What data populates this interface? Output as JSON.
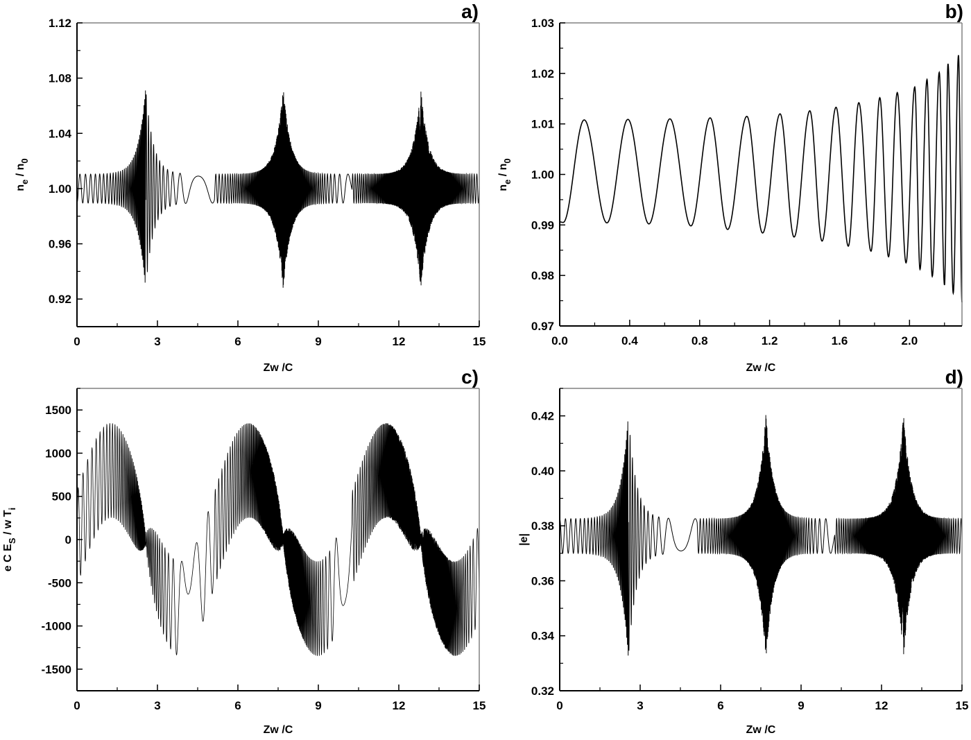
{
  "figure": {
    "background": "#ffffff",
    "line_color": "#000000",
    "frame_color": "#000000",
    "frame_top_right_color": "#808080"
  },
  "chart_data": [
    {
      "id": "a",
      "panel_label": "a)",
      "type": "line",
      "title": "",
      "xlabel": "Zw /C",
      "ylabel": "n_e / n_0",
      "ylabel_main": "n",
      "ylabel_parts": [
        "n",
        "e",
        " / n",
        "0"
      ],
      "xlim": [
        0,
        15
      ],
      "ylim": [
        0.9,
        1.12
      ],
      "xticks": [
        0,
        3,
        6,
        9,
        12,
        15
      ],
      "xtick_labels": [
        "0",
        "3",
        "6",
        "9",
        "12",
        "15"
      ],
      "yticks": [
        0.92,
        0.96,
        1.0,
        1.04,
        1.08,
        1.12
      ],
      "ytick_labels": [
        "0.92",
        "0.96",
        "1.00",
        "1.04",
        "1.08",
        "1.12"
      ],
      "grid": false,
      "description": "Oscillation around 1.00 with baseline amplitude ~0.01; sharp bursts (dense high-frequency oscillation) peaking at x≈2.56, 7.69, 12.82",
      "baseline": 1.0,
      "baseline_amplitude": 0.0105,
      "burst_centers": [
        2.56,
        7.69,
        12.82
      ],
      "burst_peak_max": 1.073,
      "burst_peak_min": 0.929,
      "period": 5.13
    },
    {
      "id": "b",
      "panel_label": "b)",
      "type": "line",
      "title": "",
      "xlabel": "Zw /C",
      "ylabel": "n_e / n_0",
      "ylabel_parts": [
        "n",
        "e",
        " / n",
        "0"
      ],
      "xlim": [
        0,
        2.3
      ],
      "ylim": [
        0.97,
        1.03
      ],
      "xticks": [
        0.0,
        0.4,
        0.8,
        1.2,
        1.6,
        2.0
      ],
      "xtick_labels": [
        "0.0",
        "0.4",
        "0.8",
        "1.2",
        "1.6",
        "2.0"
      ],
      "yticks": [
        0.97,
        0.98,
        0.99,
        1.0,
        1.01,
        1.02,
        1.03
      ],
      "ytick_labels": [
        "0.97",
        "0.98",
        "0.99",
        "1.00",
        "1.01",
        "1.02",
        "1.03"
      ],
      "grid": false,
      "description": "Zoom of panel a from 0 to 2.3: oscillation with growing amplitude and increasing frequency (chirp)",
      "peaks": [
        {
          "x": 0.14,
          "y": 1.0108
        },
        {
          "x": 0.39,
          "y": 1.0109
        },
        {
          "x": 0.63,
          "y": 1.011
        },
        {
          "x": 0.86,
          "y": 1.0112
        },
        {
          "x": 1.07,
          "y": 1.0115
        },
        {
          "x": 1.26,
          "y": 1.012
        },
        {
          "x": 1.43,
          "y": 1.0126
        },
        {
          "x": 1.58,
          "y": 1.0133
        },
        {
          "x": 1.71,
          "y": 1.0142
        },
        {
          "x": 1.83,
          "y": 1.0152
        },
        {
          "x": 1.93,
          "y": 1.0162
        },
        {
          "x": 2.03,
          "y": 1.0173
        },
        {
          "x": 2.1,
          "y": 1.0188
        },
        {
          "x": 2.17,
          "y": 1.0202
        },
        {
          "x": 2.22,
          "y": 1.0219
        },
        {
          "x": 2.28,
          "y": 1.0236
        }
      ],
      "troughs": [
        {
          "x": 0.02,
          "y": 0.9905
        },
        {
          "x": 0.27,
          "y": 0.9904
        },
        {
          "x": 0.51,
          "y": 0.9902
        },
        {
          "x": 0.75,
          "y": 0.9898
        },
        {
          "x": 0.96,
          "y": 0.9891
        },
        {
          "x": 1.16,
          "y": 0.9884
        },
        {
          "x": 1.34,
          "y": 0.9876
        },
        {
          "x": 1.5,
          "y": 0.9868
        },
        {
          "x": 1.65,
          "y": 0.9858
        },
        {
          "x": 1.78,
          "y": 0.9848
        },
        {
          "x": 1.88,
          "y": 0.9837
        },
        {
          "x": 1.98,
          "y": 0.9825
        },
        {
          "x": 2.06,
          "y": 0.9812
        },
        {
          "x": 2.13,
          "y": 0.9798
        },
        {
          "x": 2.2,
          "y": 0.9781
        },
        {
          "x": 2.25,
          "y": 0.9765
        },
        {
          "x": 2.3,
          "y": 0.9747
        }
      ]
    },
    {
      "id": "c",
      "panel_label": "c)",
      "type": "line",
      "title": "",
      "xlabel": "Zw /C",
      "ylabel": "e C E_S / w T_i",
      "ylabel_parts": [
        "e C E",
        "S",
        " / w T",
        "i"
      ],
      "xlim": [
        0,
        15
      ],
      "ylim": [
        -1750,
        1750
      ],
      "xticks": [
        0,
        3,
        6,
        9,
        12,
        15
      ],
      "xtick_labels": [
        "0",
        "3",
        "6",
        "9",
        "12",
        "15"
      ],
      "yticks": [
        -1500,
        -1000,
        -500,
        0,
        500,
        1000,
        1500
      ],
      "ytick_labels": [
        "-1500",
        "-1000",
        "-500",
        "0",
        "500",
        "1000",
        "1500"
      ],
      "grid": false,
      "description": "Slow sinusoidal envelope (period ~5.13) of amplitude ~800 with superposed fast oscillation of amplitude ~550; max ≈ 1350, min ≈ -1350; dense zero-crossings near x≈2.56, 7.69, 12.82",
      "slow_amplitude": 800,
      "fast_amplitude": 550,
      "max": 1350,
      "min": -1350,
      "period": 5.13,
      "dense_regions": [
        2.56,
        7.69,
        12.82
      ]
    },
    {
      "id": "d",
      "panel_label": "d)",
      "type": "line",
      "title": "",
      "xlabel": "Zw /C",
      "ylabel": "|e|",
      "xlim": [
        0,
        15
      ],
      "ylim": [
        0.32,
        0.43
      ],
      "xticks": [
        0,
        3,
        6,
        9,
        12,
        15
      ],
      "xtick_labels": [
        "0",
        "3",
        "6",
        "9",
        "12",
        "15"
      ],
      "yticks": [
        0.32,
        0.34,
        0.36,
        0.38,
        0.4,
        0.42
      ],
      "ytick_labels": [
        "0.32",
        "0.34",
        "0.36",
        "0.38",
        "0.40",
        "0.42"
      ],
      "grid": false,
      "description": "Oscillation between ~0.370 and ~0.383 (center ~0.376) with bursts at x≈2.56, 7.69, 12.82 reaching ~0.421 max and ~0.331 min",
      "baseline": 0.3763,
      "baseline_amplitude": 0.0063,
      "burst_centers": [
        2.56,
        7.69,
        12.82
      ],
      "burst_peak_max": 0.421,
      "burst_peak_min": 0.331,
      "period": 5.13
    }
  ]
}
